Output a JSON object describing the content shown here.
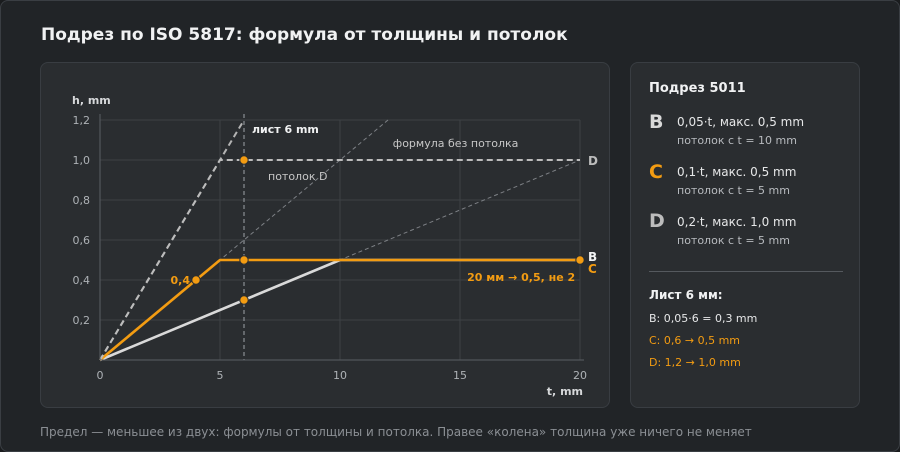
{
  "title": "Подрез по ISO 5817: формула от толщины и потолок",
  "footnote": "Предел — меньшее из двух: формулы от толщины и потолка. Правее «колена» толщина уже ничего не меняет",
  "colors": {
    "background": "#212427",
    "card": "#2a2d30",
    "B": "#d9d9d9",
    "C": "#f39c12",
    "D": "#bcbcbc",
    "label_light": "#c7c7c7"
  },
  "chart_data": {
    "type": "line",
    "xlabel": "t, mm",
    "ylabel": "h, mm",
    "xlim": [
      0,
      20
    ],
    "ylim": [
      0,
      1.2
    ],
    "x_ticks": [
      "0",
      "5",
      "10",
      "15",
      "20"
    ],
    "y_ticks": [
      "0,2",
      "0,4",
      "0,6",
      "0,8",
      "1,0",
      "1,2"
    ],
    "grid": true,
    "series": [
      {
        "name": "B",
        "points": [
          [
            0,
            0
          ],
          [
            10,
            0.5
          ],
          [
            20,
            0.5
          ]
        ]
      },
      {
        "name": "C",
        "points": [
          [
            0,
            0
          ],
          [
            5,
            0.5
          ],
          [
            20,
            0.5
          ]
        ]
      },
      {
        "name": "D",
        "points": [
          [
            0,
            0
          ],
          [
            5,
            1.0
          ],
          [
            20,
            1.0
          ]
        ]
      }
    ],
    "formula_without_ceiling": [
      {
        "name": "B",
        "points": [
          [
            0,
            0
          ],
          [
            20,
            1.0
          ]
        ]
      },
      {
        "name": "C",
        "points": [
          [
            0,
            0
          ],
          [
            12,
            1.2
          ]
        ]
      },
      {
        "name": "D",
        "points": [
          [
            0,
            0
          ],
          [
            6,
            1.2
          ]
        ]
      }
    ],
    "reference_line": {
      "x": 6,
      "label": "лист 6 mm"
    },
    "marked_points": [
      {
        "series": "B",
        "x": 6,
        "y": 0.3
      },
      {
        "series": "C",
        "x": 6,
        "y": 0.5
      },
      {
        "series": "D",
        "x": 6,
        "y": 1.0
      },
      {
        "series": "C",
        "x": 4,
        "y": 0.4
      },
      {
        "series": "C",
        "x": 20,
        "y": 0.5
      }
    ],
    "annotations": {
      "ceiling_d": "потолок D",
      "no_ceiling": "формула без потолка",
      "c_at_4": "0,4",
      "c_at_20": "20 мм → 0,5, не 2"
    },
    "end_labels": {
      "B": "B",
      "C": "C",
      "D": "D"
    }
  },
  "side": {
    "title": "Подрез 5011",
    "classes": [
      {
        "letter": "B",
        "formula": "0,05·t, макс. 0,5 mm",
        "ceiling_note": "потолок с t = 10 mm"
      },
      {
        "letter": "C",
        "formula": "0,1·t, макс. 0,5 mm",
        "ceiling_note": "потолок с t = 5 mm"
      },
      {
        "letter": "D",
        "formula": "0,2·t, макс. 1,0 mm",
        "ceiling_note": "потолок с t = 5 mm"
      }
    ],
    "example_title": "Лист 6 мм:",
    "examples": [
      {
        "text": "B: 0,05·6 = 0,3 mm"
      },
      {
        "text": "C: 0,6 → 0,5 mm"
      },
      {
        "text": "D: 1,2 → 1,0 mm"
      }
    ]
  }
}
